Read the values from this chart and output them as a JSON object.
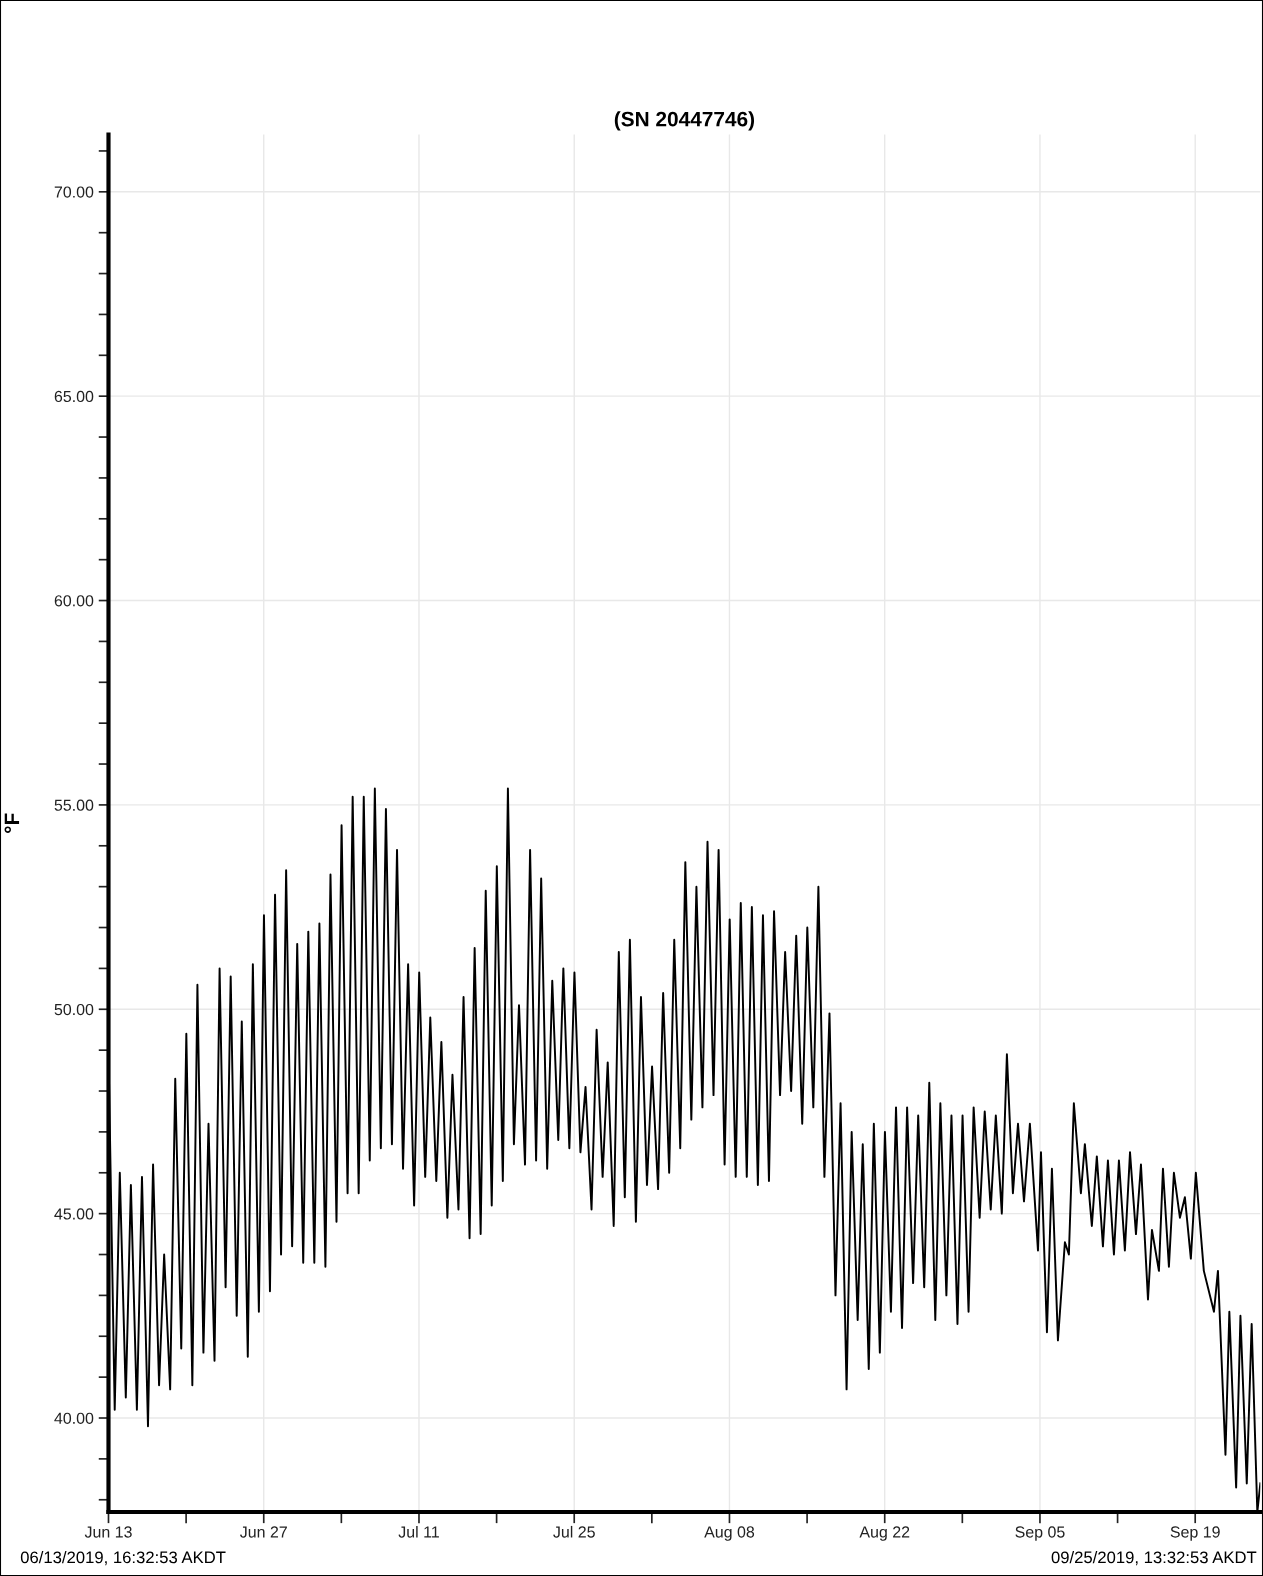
{
  "chart_data": {
    "type": "line",
    "title": "(SN 20447746)",
    "ylabel": "°F",
    "annotations": [
      "06/13/2019, 16:32:53 AKDT",
      "09/25/2019, 13:32:53 AKDT"
    ],
    "xlim": [
      "2019-06-13T16:32",
      "2019-09-25T13:32"
    ],
    "xticks": [
      {
        "value": "2019-06-13T16:32",
        "label": "Jun 13"
      },
      {
        "value": "2019-06-20T16:32",
        "label": null
      },
      {
        "value": "2019-06-27T16:32",
        "label": "Jun 27"
      },
      {
        "value": "2019-07-04T16:32",
        "label": null
      },
      {
        "value": "2019-07-11T16:32",
        "label": "Jul 11"
      },
      {
        "value": "2019-07-18T16:32",
        "label": null
      },
      {
        "value": "2019-07-25T16:32",
        "label": "Jul 25"
      },
      {
        "value": "2019-08-01T16:32",
        "label": null
      },
      {
        "value": "2019-08-08T16:32",
        "label": "Aug 08"
      },
      {
        "value": "2019-08-15T16:32",
        "label": null
      },
      {
        "value": "2019-08-22T16:32",
        "label": "Aug 22"
      },
      {
        "value": "2019-08-29T16:32",
        "label": null
      },
      {
        "value": "2019-09-05T16:32",
        "label": "Sep 05"
      },
      {
        "value": "2019-09-12T16:32",
        "label": null
      },
      {
        "value": "2019-09-19T16:32",
        "label": "Sep 19"
      }
    ],
    "ylim": [
      37.7,
      71.4
    ],
    "yticks": [
      {
        "value": 38,
        "label": null
      },
      {
        "value": 39,
        "label": null
      },
      {
        "value": 40,
        "label": "40.00"
      },
      {
        "value": 41,
        "label": null
      },
      {
        "value": 42,
        "label": null
      },
      {
        "value": 43,
        "label": null
      },
      {
        "value": 44,
        "label": null
      },
      {
        "value": 45,
        "label": "45.00"
      },
      {
        "value": 46,
        "label": null
      },
      {
        "value": 47,
        "label": null
      },
      {
        "value": 48,
        "label": null
      },
      {
        "value": 49,
        "label": null
      },
      {
        "value": 50,
        "label": "50.00"
      },
      {
        "value": 51,
        "label": null
      },
      {
        "value": 52,
        "label": null
      },
      {
        "value": 53,
        "label": null
      },
      {
        "value": 54,
        "label": null
      },
      {
        "value": 55,
        "label": "55.00"
      },
      {
        "value": 56,
        "label": null
      },
      {
        "value": 57,
        "label": null
      },
      {
        "value": 58,
        "label": null
      },
      {
        "value": 59,
        "label": null
      },
      {
        "value": 60,
        "label": "60.00"
      },
      {
        "value": 61,
        "label": null
      },
      {
        "value": 62,
        "label": null
      },
      {
        "value": 63,
        "label": null
      },
      {
        "value": 64,
        "label": null
      },
      {
        "value": 65,
        "label": "65.00"
      },
      {
        "value": 66,
        "label": null
      },
      {
        "value": 67,
        "label": null
      },
      {
        "value": 68,
        "label": null
      },
      {
        "value": 69,
        "label": null
      },
      {
        "value": 70,
        "label": "70.00"
      },
      {
        "value": 71,
        "label": null
      }
    ],
    "grid": true,
    "series": [
      {
        "color": "#000000",
        "x": [
          "2019-06-13T16:32",
          "2019-06-14T06:00",
          "2019-06-14T17:00",
          "2019-06-15T06:00",
          "2019-06-15T17:00",
          "2019-06-16T06:00",
          "2019-06-16T17:00",
          "2019-06-17T06:00",
          "2019-06-17T17:00",
          "2019-06-18T06:00",
          "2019-06-18T17:00",
          "2019-06-19T06:00",
          "2019-06-19T17:00",
          "2019-06-20T06:00",
          "2019-06-20T17:00",
          "2019-06-21T06:00",
          "2019-06-21T17:00",
          "2019-06-22T06:00",
          "2019-06-22T17:00",
          "2019-06-23T06:00",
          "2019-06-23T17:00",
          "2019-06-24T06:00",
          "2019-06-24T17:00",
          "2019-06-25T06:00",
          "2019-06-25T17:00",
          "2019-06-26T06:00",
          "2019-06-26T17:00",
          "2019-06-27T06:00",
          "2019-06-27T17:00",
          "2019-06-28T06:00",
          "2019-06-28T17:00",
          "2019-06-29T06:00",
          "2019-06-29T17:00",
          "2019-06-30T06:00",
          "2019-06-30T17:00",
          "2019-07-01T06:00",
          "2019-07-01T17:00",
          "2019-07-02T06:00",
          "2019-07-02T17:00",
          "2019-07-03T06:00",
          "2019-07-03T17:00",
          "2019-07-04T06:00",
          "2019-07-04T17:00",
          "2019-07-05T06:00",
          "2019-07-05T17:00",
          "2019-07-06T06:00",
          "2019-07-06T17:00",
          "2019-07-07T06:00",
          "2019-07-07T17:00",
          "2019-07-08T06:00",
          "2019-07-08T17:00",
          "2019-07-09T06:00",
          "2019-07-09T17:00",
          "2019-07-10T06:00",
          "2019-07-10T17:00",
          "2019-07-11T06:00",
          "2019-07-11T17:00",
          "2019-07-12T06:00",
          "2019-07-12T17:00",
          "2019-07-13T06:00",
          "2019-07-13T17:00",
          "2019-07-14T06:00",
          "2019-07-14T17:00",
          "2019-07-15T06:00",
          "2019-07-15T17:00",
          "2019-07-16T06:00",
          "2019-07-16T17:00",
          "2019-07-17T06:00",
          "2019-07-17T17:00",
          "2019-07-18T06:00",
          "2019-07-18T17:00",
          "2019-07-19T06:00",
          "2019-07-19T17:00",
          "2019-07-20T06:00",
          "2019-07-20T17:00",
          "2019-07-21T06:00",
          "2019-07-21T17:00",
          "2019-07-22T06:00",
          "2019-07-22T17:00",
          "2019-07-23T06:00",
          "2019-07-23T17:00",
          "2019-07-24T06:00",
          "2019-07-24T17:00",
          "2019-07-25T06:00",
          "2019-07-25T17:00",
          "2019-07-26T06:00",
          "2019-07-26T17:00",
          "2019-07-27T06:00",
          "2019-07-27T17:00",
          "2019-07-28T06:00",
          "2019-07-28T17:00",
          "2019-07-29T06:00",
          "2019-07-29T17:00",
          "2019-07-30T06:00",
          "2019-07-30T17:00",
          "2019-07-31T06:00",
          "2019-07-31T17:00",
          "2019-08-01T06:00",
          "2019-08-01T17:00",
          "2019-08-02T06:00",
          "2019-08-02T17:00",
          "2019-08-03T06:00",
          "2019-08-03T17:00",
          "2019-08-04T06:00",
          "2019-08-04T17:00",
          "2019-08-05T06:00",
          "2019-08-05T17:00",
          "2019-08-06T06:00",
          "2019-08-06T17:00",
          "2019-08-07T06:00",
          "2019-08-07T17:00",
          "2019-08-08T06:00",
          "2019-08-08T17:00",
          "2019-08-09T06:00",
          "2019-08-09T17:00",
          "2019-08-10T06:00",
          "2019-08-10T17:00",
          "2019-08-11T06:00",
          "2019-08-11T17:00",
          "2019-08-12T06:00",
          "2019-08-12T17:00",
          "2019-08-13T06:00",
          "2019-08-13T17:00",
          "2019-08-14T06:00",
          "2019-08-14T17:00",
          "2019-08-15T06:00",
          "2019-08-15T17:00",
          "2019-08-16T06:00",
          "2019-08-16T17:00",
          "2019-08-17T06:00",
          "2019-08-17T17:00",
          "2019-08-18T06:00",
          "2019-08-18T17:00",
          "2019-08-19T06:00",
          "2019-08-19T17:00",
          "2019-08-20T06:00",
          "2019-08-20T17:00",
          "2019-08-21T06:00",
          "2019-08-21T17:00",
          "2019-08-22T06:00",
          "2019-08-22T17:00",
          "2019-08-23T06:00",
          "2019-08-23T17:00",
          "2019-08-24T06:00",
          "2019-08-24T17:00",
          "2019-08-25T06:00",
          "2019-08-25T17:00",
          "2019-08-26T06:00",
          "2019-08-26T17:00",
          "2019-08-27T06:00",
          "2019-08-27T17:00",
          "2019-08-28T06:00",
          "2019-08-28T17:00",
          "2019-08-29T06:00",
          "2019-08-29T17:00",
          "2019-08-30T06:00",
          "2019-08-30T17:00",
          "2019-08-31T06:00",
          "2019-08-31T17:00",
          "2019-09-01T06:00",
          "2019-09-01T17:00",
          "2019-09-02T06:00",
          "2019-09-02T17:00",
          "2019-09-03T06:00",
          "2019-09-03T17:00",
          "2019-09-04T06:00",
          "2019-09-04T18:44",
          "2019-09-05T12:14",
          "2019-09-05T18:44",
          "2019-09-06T07:38",
          "2019-09-06T18:26",
          "2019-09-07T07:26",
          "2019-09-07T22:32",
          "2019-09-08T07:08",
          "2019-09-08T17:56",
          "2019-09-09T09:08",
          "2019-09-09T17:44",
          "2019-09-10T08:50",
          "2019-09-10T19:38",
          "2019-09-11T08:50",
          "2019-09-11T19:38",
          "2019-09-12T08:38",
          "2019-09-12T19:26",
          "2019-09-13T08:20",
          "2019-09-13T19:26",
          "2019-09-14T08:20",
          "2019-09-14T19:08",
          "2019-09-15T10:20",
          "2019-09-15T18:56",
          "2019-09-16T10:02",
          "2019-09-16T18:44",
          "2019-09-17T07:38",
          "2019-09-17T18:26",
          "2019-09-18T07:26",
          "2019-09-18T18:14",
          "2019-09-19T07:08",
          "2019-09-19T17:56",
          "2019-09-20T11:14",
          "2019-09-21T09:08",
          "2019-09-21T17:44",
          "2019-09-22T10:02",
          "2019-09-22T18:26",
          "2019-09-23T09:08",
          "2019-09-23T18:26",
          "2019-09-24T08:08",
          "2019-09-24T18:44",
          "2019-09-25T07:00",
          "2019-09-25T13:32"
        ],
        "values": [
          49.0,
          40.2,
          46.0,
          40.5,
          45.7,
          40.2,
          45.9,
          39.8,
          46.2,
          40.8,
          44.0,
          40.7,
          48.3,
          41.7,
          49.4,
          40.8,
          50.6,
          41.6,
          47.2,
          41.4,
          51.0,
          43.2,
          50.8,
          42.5,
          49.7,
          41.5,
          51.1,
          42.6,
          52.3,
          43.1,
          52.8,
          44.0,
          53.4,
          44.2,
          51.6,
          43.8,
          51.9,
          43.8,
          52.1,
          43.7,
          53.3,
          44.8,
          54.5,
          45.5,
          55.2,
          45.5,
          55.2,
          46.3,
          55.4,
          46.6,
          54.9,
          46.7,
          53.9,
          46.1,
          51.1,
          45.2,
          50.9,
          45.9,
          49.8,
          45.8,
          49.2,
          44.9,
          48.4,
          45.1,
          50.3,
          44.4,
          51.5,
          44.5,
          52.9,
          45.2,
          53.5,
          45.8,
          55.4,
          46.7,
          50.1,
          46.2,
          53.9,
          46.3,
          53.2,
          46.1,
          50.7,
          46.8,
          51.0,
          46.6,
          50.9,
          46.5,
          48.1,
          45.1,
          49.5,
          45.9,
          48.7,
          44.7,
          51.4,
          45.4,
          51.7,
          44.8,
          50.3,
          45.7,
          48.6,
          45.6,
          50.4,
          46.0,
          51.7,
          46.6,
          53.6,
          47.3,
          53.0,
          47.6,
          54.1,
          47.9,
          53.9,
          46.2,
          52.2,
          45.9,
          52.6,
          45.9,
          52.5,
          45.7,
          52.3,
          45.8,
          52.4,
          47.9,
          51.4,
          48.0,
          51.8,
          47.2,
          52.0,
          47.6,
          53.0,
          45.9,
          49.9,
          43.0,
          47.7,
          40.7,
          47.0,
          42.4,
          46.7,
          41.2,
          47.2,
          41.6,
          47.0,
          42.6,
          47.6,
          42.2,
          47.6,
          43.3,
          47.4,
          43.2,
          48.2,
          42.4,
          47.7,
          43.0,
          47.4,
          42.3,
          47.4,
          42.6,
          47.6,
          44.9,
          47.5,
          45.1,
          47.4,
          45.0,
          48.9,
          45.5,
          47.2,
          45.3,
          47.2,
          44.1,
          46.5,
          42.1,
          46.1,
          41.9,
          44.3,
          44.0,
          47.7,
          45.5,
          46.7,
          44.7,
          46.4,
          44.2,
          46.3,
          44.0,
          46.3,
          44.1,
          46.5,
          44.5,
          46.2,
          42.9,
          44.6,
          43.6,
          46.1,
          43.7,
          46.0,
          44.9,
          45.4,
          43.9,
          46.0,
          43.6,
          42.6,
          43.6,
          39.1,
          42.6,
          38.3,
          42.5,
          38.4,
          42.3,
          37.7,
          38.4
        ]
      }
    ]
  }
}
